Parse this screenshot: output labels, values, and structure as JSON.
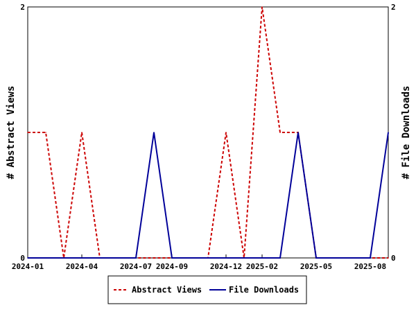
{
  "chart_data": {
    "type": "line",
    "x": [
      "2024-01",
      "2024-02",
      "2024-03",
      "2024-04",
      "2024-05",
      "2024-06",
      "2024-07",
      "2024-08",
      "2024-09",
      "2024-10",
      "2024-11",
      "2024-12",
      "2025-01",
      "2025-02",
      "2025-03",
      "2025-04",
      "2025-05",
      "2025-06",
      "2025-07",
      "2025-08",
      "2025-09"
    ],
    "series": [
      {
        "name": "Abstract Views",
        "axis": "left",
        "color": "#cc0000",
        "dash": true,
        "values": [
          1,
          1,
          0,
          1,
          0,
          0,
          0,
          0,
          0,
          0,
          0,
          1,
          0,
          2,
          1,
          1,
          0,
          0,
          0,
          0,
          0
        ]
      },
      {
        "name": "File Downloads",
        "axis": "right",
        "color": "#000099",
        "dash": false,
        "values": [
          0,
          0,
          0,
          0,
          0,
          0,
          0,
          1,
          0,
          0,
          0,
          0,
          0,
          0,
          0,
          1,
          0,
          0,
          0,
          0,
          1
        ]
      }
    ],
    "xtick_labels": [
      "2024-01",
      "2024-04",
      "2024-07",
      "2024-09",
      "2024-12",
      "2025-02",
      "2025-05",
      "2025-08"
    ],
    "ylabel_left": "# Abstract Views",
    "ylabel_right": "# File Downloads",
    "ylim": [
      0,
      2
    ],
    "yticks_left": [
      "0",
      "2"
    ],
    "yticks_right": [
      "0",
      "2"
    ],
    "legend_position": "bottom-center",
    "grid": false
  }
}
